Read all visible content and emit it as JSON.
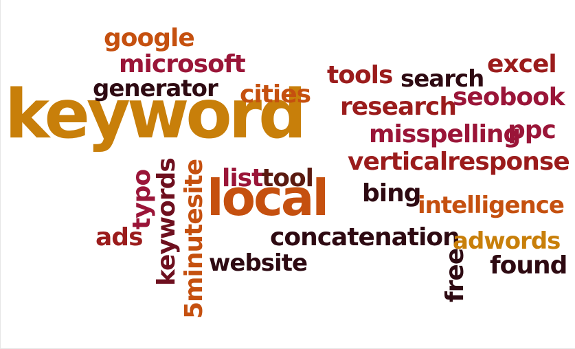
{
  "colors": {
    "gold": "#c87f0a",
    "orange": "#c5500f",
    "red": "#9b1c1c",
    "crimson": "#9a1538",
    "maroon": "#6e0f1e",
    "brown": "#5a1a10",
    "dark": "#2e0a12"
  },
  "words": {
    "keyword": "keyword",
    "local": "local",
    "google": "google",
    "microsoft": "microsoft",
    "generator": "generator",
    "cities": "cities",
    "tools": "tools",
    "search": "search",
    "excel": "excel",
    "research": "research",
    "seobook": "seobook",
    "misspelling": "misspelling",
    "ppc": "ppc",
    "verticalresponse": "verticalresponse",
    "list": "list",
    "tool": "tool",
    "bing": "bing",
    "intelligence": "intelligence",
    "concatenation": "concatenation",
    "adwords": "adwords",
    "ads": "ads",
    "typo": "typo",
    "keywords": "keywords",
    "fiveminutesite": "5minutesite",
    "website": "website",
    "free": "free",
    "found": "found"
  }
}
